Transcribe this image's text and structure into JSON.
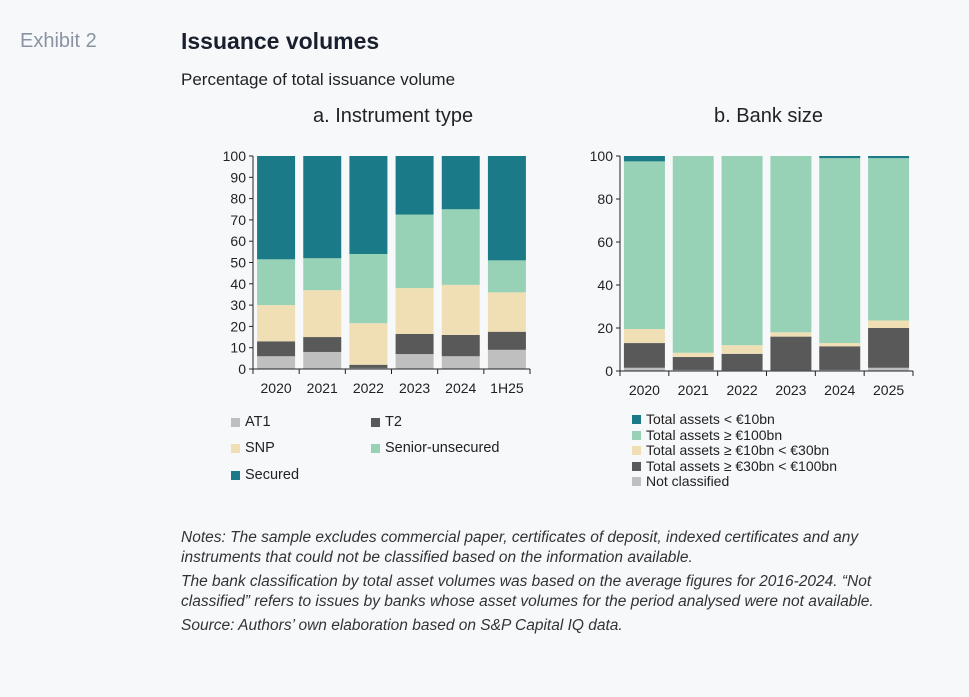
{
  "exhibit": "Exhibit 2",
  "title": "Issuance volumes",
  "subtitle": "Percentage of total issuance volume",
  "chart_data": [
    {
      "type": "bar",
      "stacked": true,
      "title": "a. Instrument type",
      "categories": [
        "2020",
        "2021",
        "2022",
        "2023",
        "2024",
        "1H25"
      ],
      "ylim": [
        0,
        100
      ],
      "yticks": [
        0,
        10,
        20,
        30,
        40,
        50,
        60,
        70,
        80,
        90,
        100
      ],
      "legend_position": "bottom",
      "series": [
        {
          "name": "AT1",
          "color": "#bfbfbf",
          "values": [
            6,
            8,
            0.5,
            7,
            6,
            9
          ]
        },
        {
          "name": "T2",
          "color": "#595959",
          "values": [
            7,
            7,
            1.5,
            9.5,
            10,
            8.5
          ]
        },
        {
          "name": "SNP",
          "color": "#f0dfb5",
          "values": [
            17,
            22,
            19.5,
            21.5,
            23.5,
            18.5
          ]
        },
        {
          "name": "Senior-unsecured",
          "color": "#97d2b6",
          "values": [
            21.5,
            15,
            32.5,
            34.5,
            35.5,
            15
          ]
        },
        {
          "name": "Secured",
          "color": "#1b7a87",
          "values": [
            48.5,
            48,
            46,
            27.5,
            25,
            49
          ]
        }
      ]
    },
    {
      "type": "bar",
      "stacked": true,
      "title": "b. Bank size",
      "categories": [
        "2020",
        "2021",
        "2022",
        "2023",
        "2024",
        "2025"
      ],
      "ylim": [
        0,
        100
      ],
      "yticks": [
        0,
        20,
        40,
        60,
        80,
        100
      ],
      "legend_position": "bottom",
      "series": [
        {
          "name": "Not classified",
          "color": "#bfbfbf",
          "values": [
            1.5,
            0.5,
            0.3,
            0.3,
            0.5,
            1.5
          ]
        },
        {
          "name": "Total assets ≥ €30bn < €100bn",
          "color": "#595959",
          "values": [
            11.5,
            6,
            7.7,
            15.7,
            11,
            18.5
          ]
        },
        {
          "name": "Total assets ≥ €10bn < €30bn",
          "color": "#f0dfb5",
          "values": [
            6.5,
            2,
            4,
            2,
            1.5,
            3.5
          ]
        },
        {
          "name": "Total assets ≥ €100bn",
          "color": "#97d2b6",
          "values": [
            78,
            91.5,
            88,
            82,
            86,
            75.5
          ]
        },
        {
          "name": "Total assets < €10bn",
          "color": "#1b7a87",
          "values": [
            2.5,
            0,
            0,
            0,
            1,
            1
          ]
        }
      ]
    }
  ],
  "notes": [
    "Notes: The sample excludes commercial paper, certificates of deposit, indexed certificates and any instruments that could not be classified based on the information available.",
    "The bank classification by total asset volumes was based on the average figures for 2016-2024. “Not classified” refers to issues by banks whose asset volumes for the period analysed were not available.",
    "Source: Authors’ own elaboration based on S&P Capital IQ data."
  ]
}
